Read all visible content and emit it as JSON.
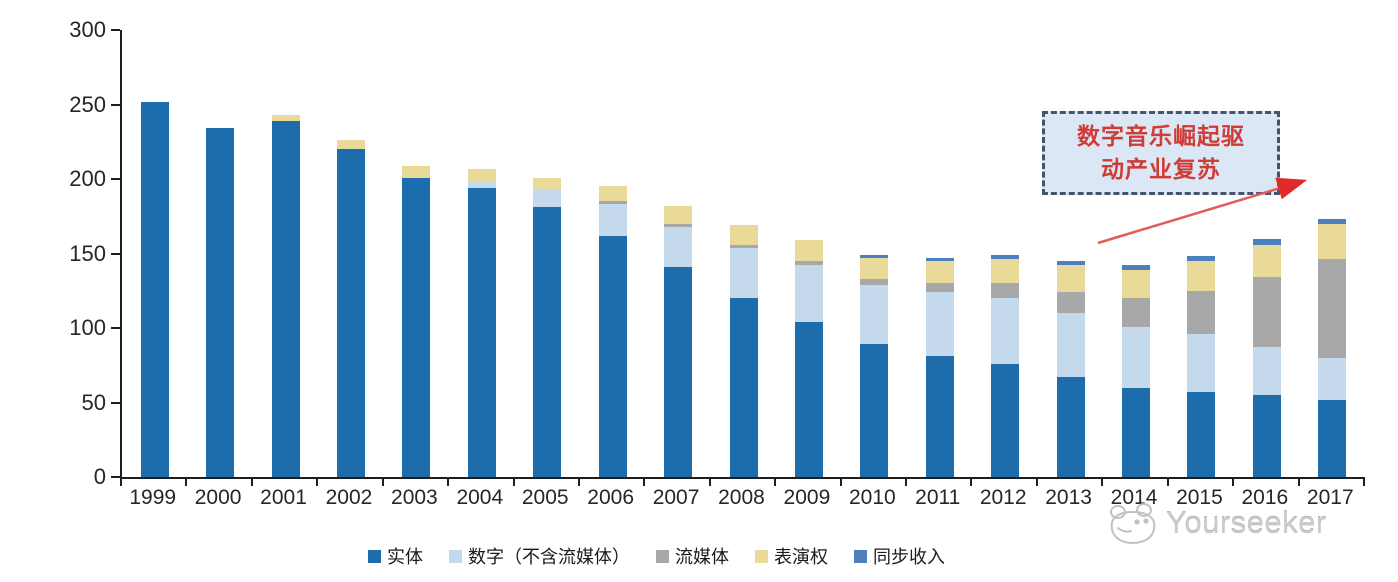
{
  "chart_data": {
    "type": "bar",
    "stacked": true,
    "title": "",
    "xlabel": "",
    "ylabel": "",
    "ylim": [
      0,
      300
    ],
    "yticks": [
      0,
      50,
      100,
      150,
      200,
      250,
      300
    ],
    "grid": false,
    "legend_position": "bottom",
    "categories": [
      "1999",
      "2000",
      "2001",
      "2002",
      "2003",
      "2004",
      "2005",
      "2006",
      "2007",
      "2008",
      "2009",
      "2010",
      "2011",
      "2012",
      "2013",
      "2014",
      "2015",
      "2016",
      "2017"
    ],
    "series": [
      {
        "key": "physical",
        "name": "实体",
        "color": "#1d6cac",
        "values": [
          252,
          234,
          239,
          220,
          201,
          194,
          181,
          162,
          141,
          120,
          104,
          89,
          81,
          76,
          67,
          60,
          57,
          55,
          52
        ]
      },
      {
        "key": "digital",
        "name": "数字（不含流媒体）",
        "color": "#c5d9ed",
        "values": [
          0,
          0,
          0,
          0,
          0,
          4,
          12,
          21,
          27,
          34,
          38,
          40,
          43,
          44,
          43,
          41,
          39,
          32,
          28
        ]
      },
      {
        "key": "streaming",
        "name": "流媒体",
        "color": "#a8a8a8",
        "values": [
          0,
          0,
          0,
          0,
          0,
          0,
          0,
          2,
          2,
          2,
          3,
          4,
          6,
          10,
          14,
          19,
          29,
          47,
          66
        ]
      },
      {
        "key": "performance",
        "name": "表演权",
        "color": "#eada9a",
        "values": [
          0,
          0,
          4,
          6,
          8,
          9,
          8,
          10,
          12,
          13,
          14,
          14,
          15,
          16,
          18,
          19,
          20,
          22,
          24
        ]
      },
      {
        "key": "sync",
        "name": "同步收入",
        "color": "#4b80bc",
        "values": [
          0,
          0,
          0,
          0,
          0,
          0,
          0,
          0,
          0,
          0,
          0,
          2,
          2,
          3,
          3,
          3,
          3,
          4,
          3
        ]
      }
    ]
  },
  "annotation": {
    "line1": "数字音乐崛起驱",
    "line2": "动产业复苏",
    "text_color": "#cf3b35",
    "box_bg": "#dce7f5",
    "box_border": "#44546a",
    "arrow_color": "#e35b5b"
  },
  "watermark": {
    "text": "Yourseeker"
  }
}
